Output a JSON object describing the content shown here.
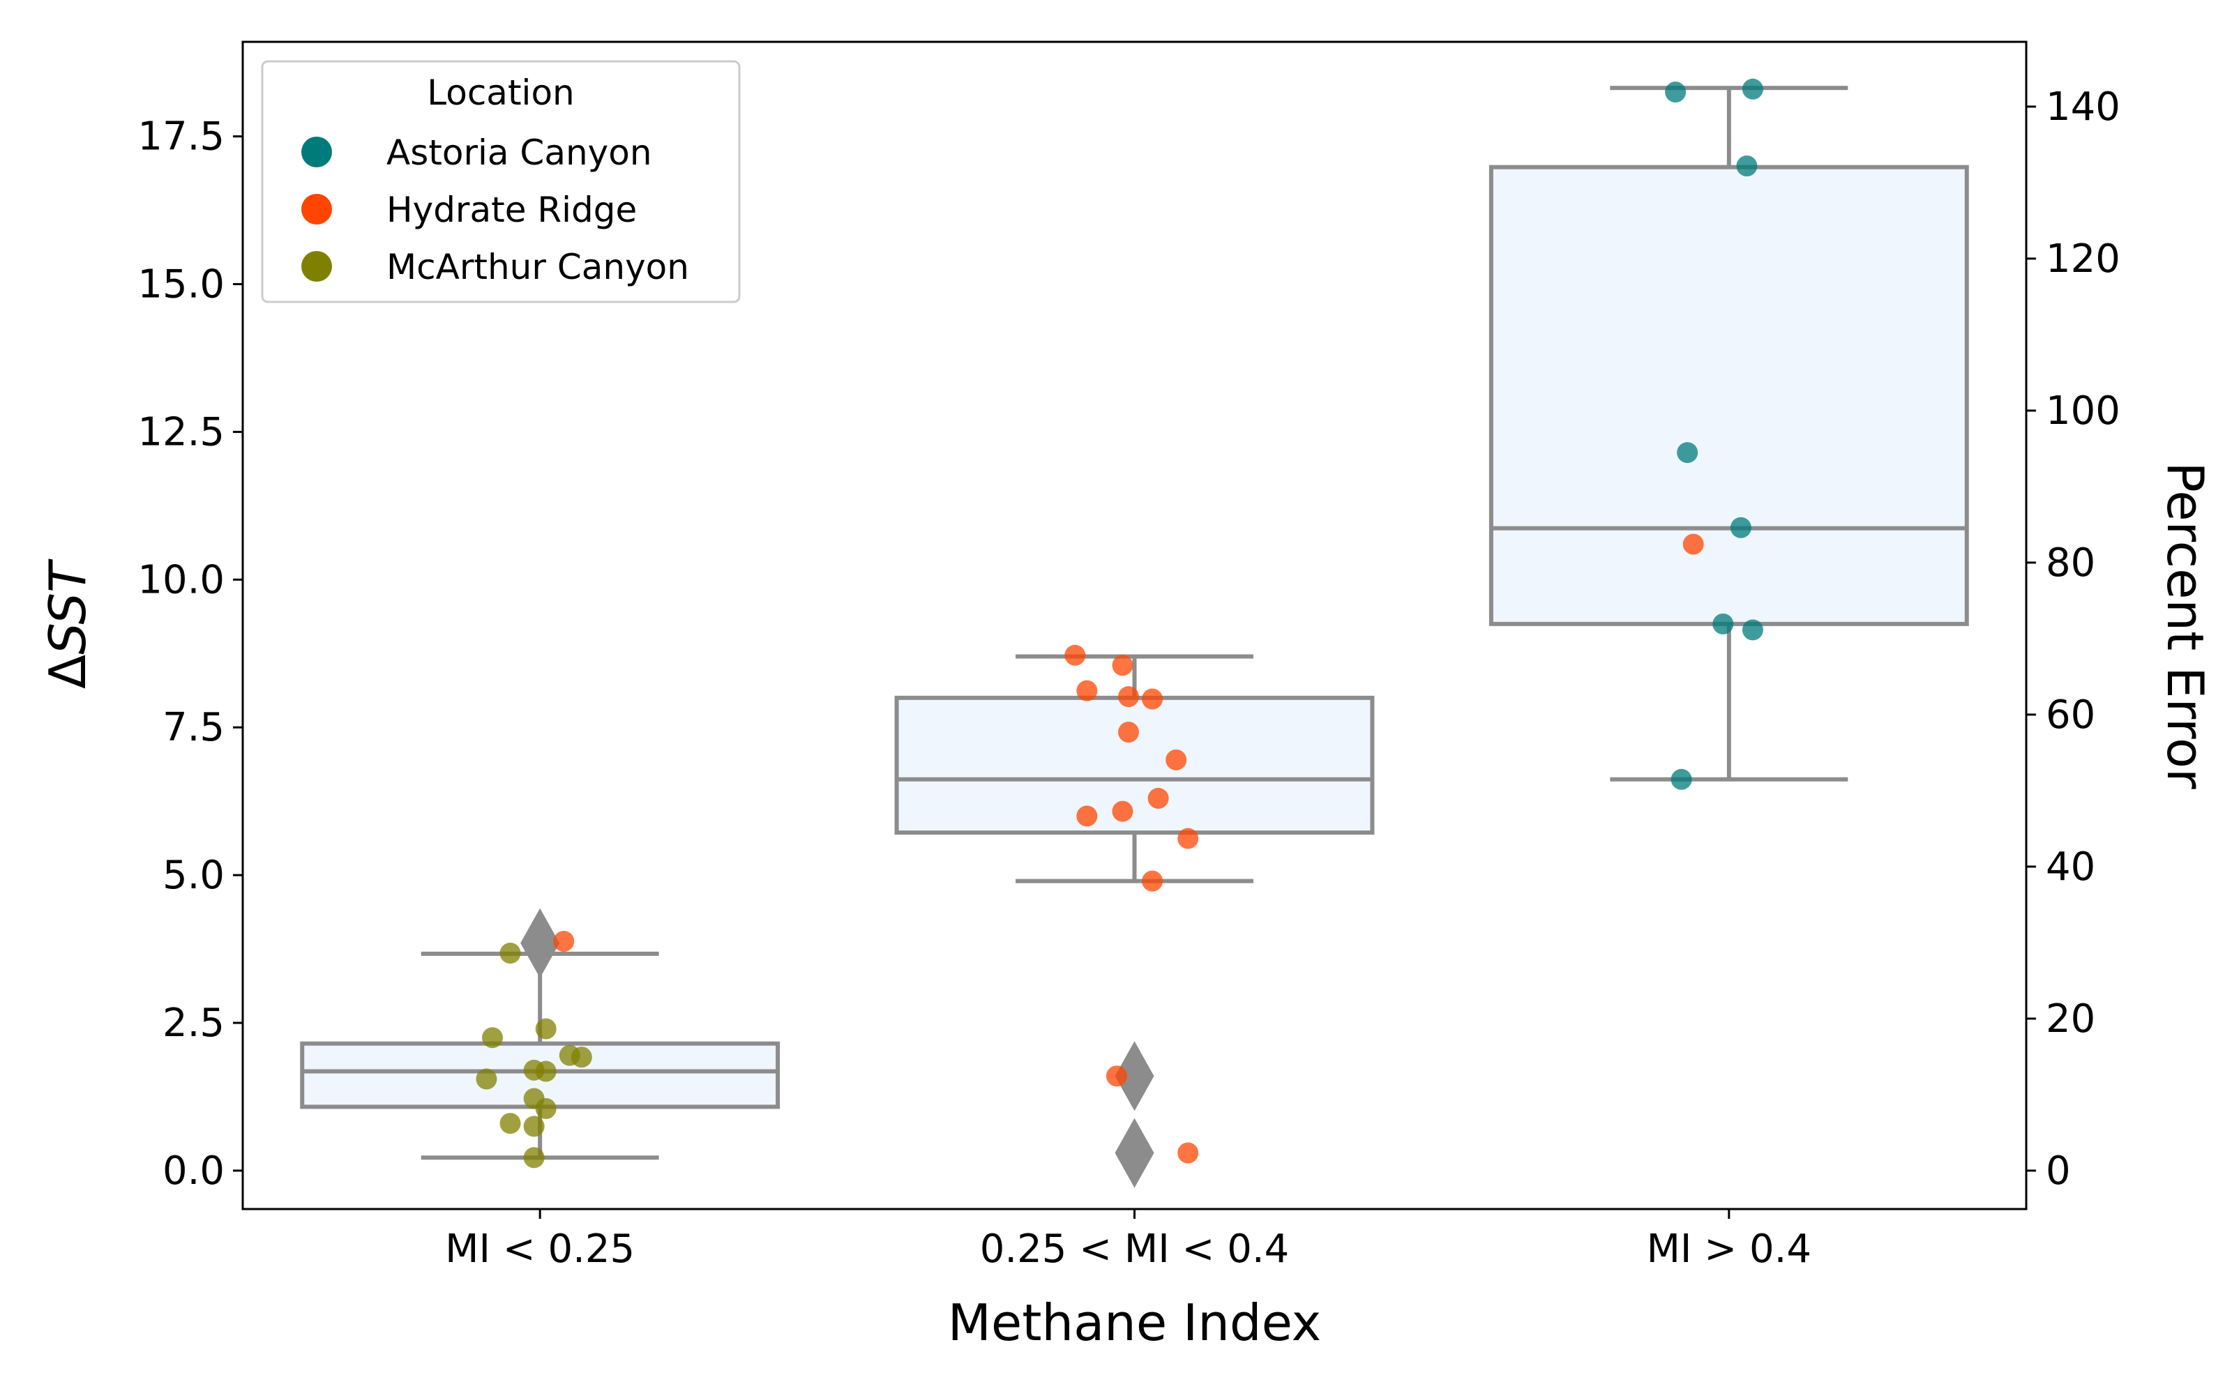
{
  "chart_data": {
    "type": "box",
    "xlabel": "Methane Index",
    "ylabel": "ΔSST",
    "ylabel_right": "Percent Error",
    "categories": [
      "MI < 0.25",
      "0.25 < MI < 0.4",
      "MI > 0.4"
    ],
    "ylim": [
      -0.65,
      19.1
    ],
    "yticks": [
      0.0,
      2.5,
      5.0,
      7.5,
      10.0,
      12.5,
      15.0,
      17.5
    ],
    "ytick_labels": [
      "0.0",
      "2.5",
      "5.0",
      "7.5",
      "10.0",
      "12.5",
      "15.0",
      "17.5"
    ],
    "yticks_right": [
      0,
      20,
      40,
      60,
      80,
      100,
      120,
      140
    ],
    "ytick_labels_right": [
      "0",
      "20",
      "40",
      "60",
      "80",
      "100",
      "120",
      "140"
    ],
    "right_axis_scale": 0.1286,
    "grid": false,
    "legend": {
      "title": "Location",
      "placement": "top-left",
      "entries": [
        {
          "name": "Astoria Canyon",
          "color": "#007b7b"
        },
        {
          "name": "Hydrate Ridge",
          "color": "#ff4500"
        },
        {
          "name": "McArthur Canyon",
          "color": "#808000"
        }
      ]
    },
    "boxes": [
      {
        "category": "MI < 0.25",
        "q1": 1.08,
        "median": 1.68,
        "q3": 2.15,
        "whisker_low": 0.22,
        "whisker_high": 3.67,
        "outliers": [
          3.85
        ]
      },
      {
        "category": "0.25 < MI < 0.4",
        "q1": 5.72,
        "median": 6.62,
        "q3": 8.0,
        "whisker_low": 4.9,
        "whisker_high": 8.7,
        "outliers": [
          1.6,
          0.3
        ]
      },
      {
        "category": "MI > 0.4",
        "q1": 9.25,
        "median": 10.87,
        "q3": 16.98,
        "whisker_low": 6.62,
        "whisker_high": 18.32,
        "outliers": []
      }
    ],
    "points": [
      {
        "category": "MI < 0.25",
        "location": "Hydrate Ridge",
        "y": 3.88,
        "jitter": 0.04
      },
      {
        "category": "MI < 0.25",
        "location": "McArthur Canyon",
        "y": 3.68,
        "jitter": -0.05
      },
      {
        "category": "MI < 0.25",
        "location": "McArthur Canyon",
        "y": 2.4,
        "jitter": 0.01
      },
      {
        "category": "MI < 0.25",
        "location": "McArthur Canyon",
        "y": 2.25,
        "jitter": -0.08
      },
      {
        "category": "MI < 0.25",
        "location": "McArthur Canyon",
        "y": 1.95,
        "jitter": 0.05
      },
      {
        "category": "MI < 0.25",
        "location": "McArthur Canyon",
        "y": 1.92,
        "jitter": 0.07
      },
      {
        "category": "MI < 0.25",
        "location": "McArthur Canyon",
        "y": 1.7,
        "jitter": -0.01
      },
      {
        "category": "MI < 0.25",
        "location": "McArthur Canyon",
        "y": 1.68,
        "jitter": 0.01
      },
      {
        "category": "MI < 0.25",
        "location": "McArthur Canyon",
        "y": 1.55,
        "jitter": -0.09
      },
      {
        "category": "MI < 0.25",
        "location": "McArthur Canyon",
        "y": 1.22,
        "jitter": -0.01
      },
      {
        "category": "MI < 0.25",
        "location": "McArthur Canyon",
        "y": 1.05,
        "jitter": 0.01
      },
      {
        "category": "MI < 0.25",
        "location": "McArthur Canyon",
        "y": 0.8,
        "jitter": -0.05
      },
      {
        "category": "MI < 0.25",
        "location": "McArthur Canyon",
        "y": 0.75,
        "jitter": -0.01
      },
      {
        "category": "MI < 0.25",
        "location": "McArthur Canyon",
        "y": 0.22,
        "jitter": -0.01
      },
      {
        "category": "0.25 < MI < 0.4",
        "location": "Hydrate Ridge",
        "y": 8.72,
        "jitter": -0.1
      },
      {
        "category": "0.25 < MI < 0.4",
        "location": "Hydrate Ridge",
        "y": 8.55,
        "jitter": -0.02
      },
      {
        "category": "0.25 < MI < 0.4",
        "location": "Hydrate Ridge",
        "y": 8.12,
        "jitter": -0.08
      },
      {
        "category": "0.25 < MI < 0.4",
        "location": "Hydrate Ridge",
        "y": 8.02,
        "jitter": -0.01
      },
      {
        "category": "0.25 < MI < 0.4",
        "location": "Hydrate Ridge",
        "y": 7.98,
        "jitter": 0.03
      },
      {
        "category": "0.25 < MI < 0.4",
        "location": "Hydrate Ridge",
        "y": 7.42,
        "jitter": -0.01
      },
      {
        "category": "0.25 < MI < 0.4",
        "location": "Hydrate Ridge",
        "y": 6.95,
        "jitter": 0.07
      },
      {
        "category": "0.25 < MI < 0.4",
        "location": "Hydrate Ridge",
        "y": 6.3,
        "jitter": 0.04
      },
      {
        "category": "0.25 < MI < 0.4",
        "location": "Hydrate Ridge",
        "y": 6.08,
        "jitter": -0.02
      },
      {
        "category": "0.25 < MI < 0.4",
        "location": "Hydrate Ridge",
        "y": 6.0,
        "jitter": -0.08
      },
      {
        "category": "0.25 < MI < 0.4",
        "location": "Hydrate Ridge",
        "y": 5.62,
        "jitter": 0.09
      },
      {
        "category": "0.25 < MI < 0.4",
        "location": "Hydrate Ridge",
        "y": 4.9,
        "jitter": 0.03
      },
      {
        "category": "0.25 < MI < 0.4",
        "location": "Hydrate Ridge",
        "y": 1.6,
        "jitter": -0.03
      },
      {
        "category": "0.25 < MI < 0.4",
        "location": "Hydrate Ridge",
        "y": 0.3,
        "jitter": 0.09
      },
      {
        "category": "MI > 0.4",
        "location": "Astoria Canyon",
        "y": 18.3,
        "jitter": 0.04
      },
      {
        "category": "MI > 0.4",
        "location": "Astoria Canyon",
        "y": 18.25,
        "jitter": -0.09
      },
      {
        "category": "MI > 0.4",
        "location": "Astoria Canyon",
        "y": 17.0,
        "jitter": 0.03
      },
      {
        "category": "MI > 0.4",
        "location": "Astoria Canyon",
        "y": 12.15,
        "jitter": -0.07
      },
      {
        "category": "MI > 0.4",
        "location": "Astoria Canyon",
        "y": 10.88,
        "jitter": 0.02
      },
      {
        "category": "MI > 0.4",
        "location": "Hydrate Ridge",
        "y": 10.6,
        "jitter": -0.06
      },
      {
        "category": "MI > 0.4",
        "location": "Astoria Canyon",
        "y": 9.25,
        "jitter": -0.01
      },
      {
        "category": "MI > 0.4",
        "location": "Astoria Canyon",
        "y": 9.15,
        "jitter": 0.04
      },
      {
        "category": "MI > 0.4",
        "location": "Astoria Canyon",
        "y": 6.62,
        "jitter": -0.08
      }
    ],
    "colors": {
      "box_fill": "#f0f6fe",
      "box_edge": "#8c8c8c"
    }
  }
}
